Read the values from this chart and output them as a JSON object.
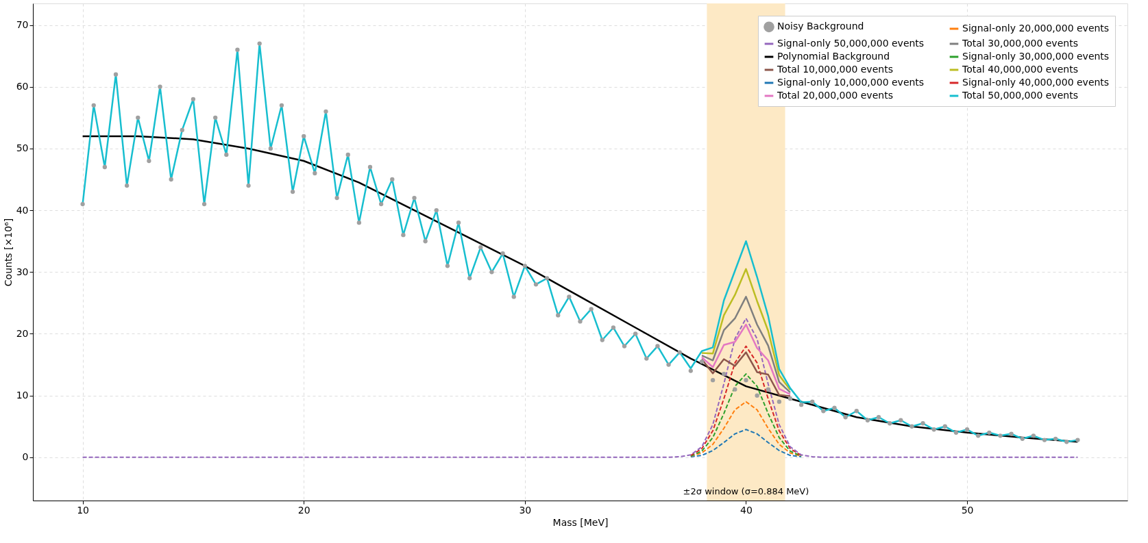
{
  "chart_data": {
    "type": "line",
    "xlabel": "Mass [MeV]",
    "ylabel": "Counts [×10⁶]",
    "x": [
      10,
      10.5,
      11,
      11.5,
      12,
      12.5,
      13,
      13.5,
      14,
      14.5,
      15,
      15.5,
      16,
      16.5,
      17,
      17.5,
      18,
      18.5,
      19,
      19.5,
      20,
      20.5,
      21,
      21.5,
      22,
      22.5,
      23,
      23.5,
      24,
      24.5,
      25,
      25.5,
      26,
      26.5,
      27,
      27.5,
      28,
      28.5,
      29,
      29.5,
      30,
      30.5,
      31,
      31.5,
      32,
      32.5,
      33,
      33.5,
      34,
      34.5,
      35,
      35.5,
      36,
      36.5,
      37,
      37.5,
      38,
      38.5,
      39,
      39.5,
      40,
      40.5,
      41,
      41.5,
      42,
      42.5,
      43,
      43.5,
      44,
      44.5,
      45,
      45.5,
      46,
      46.5,
      47,
      47.5,
      48,
      48.5,
      49,
      49.5,
      50,
      50.5,
      51,
      51.5,
      52,
      52.5,
      53,
      53.5,
      54,
      54.5,
      55
    ],
    "series": [
      {
        "name": "Noisy Background",
        "type": "scatter",
        "marker": "circle",
        "color": "#a0a0a0",
        "values": [
          41,
          57,
          47,
          62,
          44,
          55,
          48,
          60,
          45,
          53,
          58,
          41,
          55,
          49,
          66,
          44,
          67,
          50,
          57,
          43,
          52,
          46,
          56,
          42,
          49,
          38,
          47,
          41,
          45,
          36,
          42,
          35,
          40,
          31,
          38,
          29,
          34,
          30,
          33,
          26,
          31,
          28,
          29,
          23,
          26,
          22,
          24,
          19,
          21,
          18,
          20,
          16,
          18,
          15,
          17,
          14,
          15.5,
          12.5,
          13.5,
          11,
          12.5,
          10,
          11,
          9,
          9.5,
          8.5,
          9,
          7.5,
          8,
          6.5,
          7.5,
          6,
          6.5,
          5.5,
          6,
          5,
          5.5,
          4.5,
          5,
          4,
          4.5,
          3.5,
          4,
          3.5,
          3.8,
          3,
          3.5,
          2.8,
          3,
          2.5,
          2.8
        ]
      },
      {
        "name": "Polynomial Background",
        "line_style": "solid",
        "color": "#000000",
        "x": [
          10,
          12.5,
          15,
          17.5,
          20,
          22.5,
          25,
          27.5,
          30,
          32.5,
          35,
          37.5,
          40,
          42.5,
          45,
          47.5,
          50,
          52.5,
          55
        ],
        "values": [
          52,
          52,
          51.5,
          50,
          48,
          44.5,
          40,
          35.5,
          31,
          26,
          21,
          16,
          11.5,
          9,
          6.5,
          5,
          4,
          3.2,
          2.5
        ]
      },
      {
        "name": "Signal-only 10,000,000 events",
        "line_style": "dashed",
        "color": "#1f77b4",
        "x": [
          37.5,
          38,
          38.5,
          39,
          39.5,
          40,
          40.5,
          41,
          41.5,
          42,
          42.5
        ],
        "values": [
          0.1,
          0.3,
          1.1,
          2.4,
          3.8,
          4.5,
          3.8,
          2.4,
          1.1,
          0.3,
          0.1
        ]
      },
      {
        "name": "Signal-only 20,000,000 events",
        "line_style": "dashed",
        "color": "#ff7f0e",
        "x": [
          37.5,
          38,
          38.5,
          39,
          39.5,
          40,
          40.5,
          41,
          41.5,
          42,
          42.5
        ],
        "values": [
          0.2,
          0.7,
          2.1,
          4.7,
          7.7,
          9,
          7.7,
          4.7,
          2.1,
          0.7,
          0.2
        ]
      },
      {
        "name": "Signal-only 30,000,000 events",
        "line_style": "dashed",
        "color": "#2ca02c",
        "x": [
          37.5,
          38,
          38.5,
          39,
          39.5,
          40,
          40.5,
          41,
          41.5,
          42,
          42.5
        ],
        "values": [
          0.2,
          1.0,
          3.2,
          7.1,
          11.5,
          13.5,
          11.5,
          7.1,
          3.2,
          1.0,
          0.2
        ]
      },
      {
        "name": "Signal-only 40,000,000 events",
        "line_style": "dashed",
        "color": "#d62728",
        "x": [
          37.5,
          38,
          38.5,
          39,
          39.5,
          40,
          40.5,
          41,
          41.5,
          42,
          42.5
        ],
        "values": [
          0.3,
          1.4,
          4.3,
          9.5,
          15.3,
          18,
          15.3,
          9.5,
          4.3,
          1.4,
          0.3
        ]
      },
      {
        "name": "Signal-only 50,000,000 events",
        "line_style": "dashed",
        "color": "#9467bd",
        "x": [
          10,
          36.5,
          37,
          37.5,
          38,
          38.5,
          39,
          39.5,
          40,
          40.5,
          41,
          41.5,
          42,
          42.5,
          43,
          43.5,
          55
        ],
        "values": [
          0,
          0,
          0.1,
          0.4,
          1.7,
          5.3,
          11.9,
          19.2,
          22.5,
          19.2,
          11.9,
          5.3,
          1.7,
          0.4,
          0.1,
          0,
          0
        ]
      },
      {
        "name": "Total 10,000,000 events",
        "line_style": "solid",
        "color": "#8c564b",
        "x": [
          38,
          38.5,
          39,
          39.5,
          40,
          40.5,
          41,
          41.5,
          42
        ],
        "values": [
          15.9,
          13.6,
          15.9,
          14.8,
          17.0,
          13.8,
          13.4,
          10.1,
          9.9
        ]
      },
      {
        "name": "Total 20,000,000 events",
        "line_style": "solid",
        "color": "#e377c2",
        "x": [
          38,
          38.5,
          39,
          39.5,
          40,
          40.5,
          41,
          41.5,
          42
        ],
        "values": [
          16.2,
          14.6,
          18.2,
          18.7,
          21.5,
          17.7,
          15.7,
          11.1,
          10.2
        ]
      },
      {
        "name": "Total 30,000,000 events",
        "line_style": "solid",
        "color": "#7f7f7f",
        "x": [
          38,
          38.5,
          39,
          39.5,
          40,
          40.5,
          41,
          41.5,
          42
        ],
        "values": [
          16.5,
          15.7,
          20.6,
          22.5,
          26.0,
          21.5,
          18.1,
          12.2,
          10.5
        ]
      },
      {
        "name": "Total 40,000,000 events",
        "line_style": "solid",
        "color": "#bcbd22",
        "x": [
          38,
          38.5,
          39,
          39.5,
          40,
          40.5,
          41,
          41.5,
          42
        ],
        "values": [
          16.9,
          16.8,
          23.0,
          26.3,
          30.5,
          25.3,
          20.5,
          13.3,
          10.9
        ]
      },
      {
        "name": "Total 50,000,000 events",
        "line_style": "solid",
        "color": "#17becf",
        "values": [
          41,
          57,
          47,
          62,
          44,
          55,
          48,
          60,
          45,
          53,
          58,
          41,
          55,
          49,
          66,
          44,
          67,
          50,
          57,
          43,
          52,
          46,
          56,
          42,
          49,
          38,
          47,
          41,
          45,
          36,
          42,
          35,
          40,
          31,
          38,
          29,
          34,
          30,
          33,
          26,
          31,
          28,
          29,
          23,
          26,
          22,
          24,
          19,
          21,
          18,
          20,
          16,
          18,
          15,
          17,
          14.4,
          17.2,
          17.8,
          25.4,
          30.2,
          35.0,
          29.2,
          22.9,
          14.3,
          11.2,
          8.9,
          9,
          7.5,
          8,
          6.5,
          7.5,
          6,
          6.5,
          5.5,
          6,
          5,
          5.5,
          4.5,
          5,
          4,
          4.5,
          3.5,
          4,
          3.5,
          3.8,
          3,
          3.5,
          2.8,
          3,
          2.5,
          2.8
        ]
      }
    ],
    "bands": [
      {
        "axis": "x",
        "from": 38.23,
        "to": 41.77,
        "label": "±2σ window (σ=0.884 MeV)",
        "color": "#fde9c5"
      }
    ],
    "xlim": [
      7.75,
      57.25
    ],
    "xticks": [
      10,
      20,
      30,
      40,
      50
    ],
    "ylim": [
      -7,
      73.5
    ],
    "yticks": [
      0,
      10,
      20,
      30,
      40,
      50,
      60,
      70
    ],
    "grid": true,
    "legend": "top right"
  }
}
